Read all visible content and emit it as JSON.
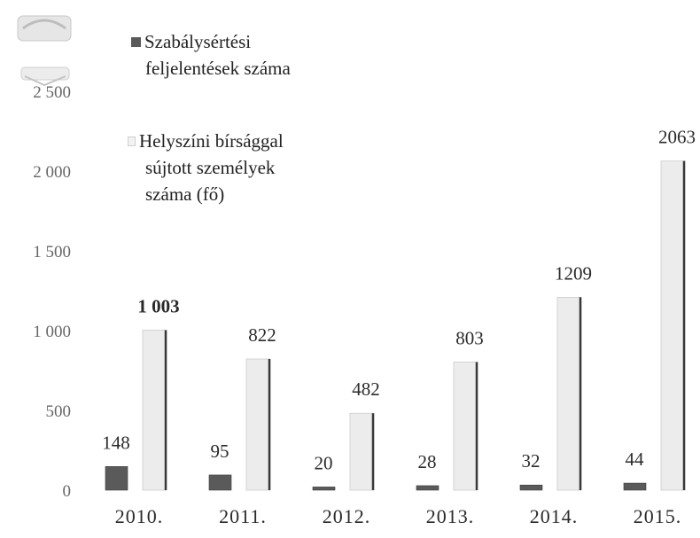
{
  "chart_data": {
    "type": "bar",
    "categories": [
      "2010.",
      "2011.",
      "2012.",
      "2013.",
      "2014.",
      "2015."
    ],
    "series": [
      {
        "name": "Szabálysértési feljelentések száma",
        "values": [
          148,
          95,
          20,
          28,
          32,
          44
        ],
        "value_labels": [
          "148",
          "95",
          "20",
          "28",
          "32",
          "44"
        ],
        "color": "#5a5a5a"
      },
      {
        "name": "Helyszíni bírsággal sújtott személyek száma (fő)",
        "values": [
          1003,
          822,
          482,
          803,
          1209,
          2063
        ],
        "value_labels": [
          "1 003",
          "822",
          "482",
          "803",
          "1209",
          "2063"
        ],
        "color": "#ececec"
      }
    ],
    "yticks": [
      0,
      500,
      1000,
      1500,
      2000,
      2500
    ],
    "ytick_labels": [
      "0",
      "500",
      "1 000",
      "1 500",
      "2 000",
      "2 500"
    ],
    "ylim": [
      0,
      2500
    ],
    "legend_position": "top-left",
    "grid": false
  },
  "legend": {
    "item1_line1": "Szabálysértési",
    "item1_line2": "feljelentések száma",
    "item2_line1": "Helyszíni bírsággal",
    "item2_line2": "sújtott személyek",
    "item2_line3": "száma (fő)"
  }
}
